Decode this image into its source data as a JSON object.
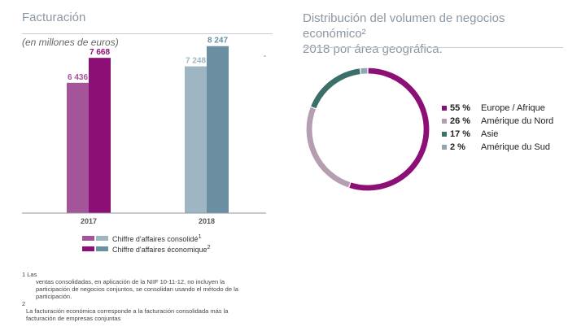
{
  "left_title": "Facturación",
  "left_subtitle": "(en millones de euros)",
  "right_title_line1": "Distribución del volumen de negocios económico²",
  "right_title_line2": "2018 por área geográfica.",
  "colors": {
    "consolidated_2017": "#a4559a",
    "economic_2017": "#8c0f76",
    "consolidated_2018": "#9eb6c1",
    "economic_2018": "#6b8fa1",
    "europe_africa": "#8c0f76",
    "north_america": "#b59db2",
    "asia": "#3d6f6a",
    "south_america": "#8ea7b5"
  },
  "chart_data": [
    {
      "type": "bar",
      "categories": [
        "2017",
        "2018"
      ],
      "series": [
        {
          "name": "Chiffre d'affaires consolidé",
          "values": [
            6436,
            7248
          ],
          "value_labels": [
            "6 436",
            "7 248"
          ]
        },
        {
          "name": "Chiffre d'affaires économique",
          "values": [
            7668,
            8247
          ],
          "value_labels": [
            "7 668",
            "8 247"
          ]
        }
      ],
      "ylim": [
        0,
        9000
      ],
      "grid": false,
      "legend_position": "bottom"
    },
    {
      "type": "pie",
      "donut": true,
      "title": "Distribución del volumen de negocios económico² 2018 por área geográfica.",
      "slices": [
        {
          "label": "Europe / Afrique",
          "value": 55,
          "value_label": "55 %"
        },
        {
          "label": "Amérique du Nord",
          "value": 26,
          "value_label": "26 %"
        },
        {
          "label": "Asie",
          "value": 17,
          "value_label": "17 %"
        },
        {
          "label": "Amérique du Sud",
          "value": 2,
          "value_label": "2 %"
        }
      ],
      "legend_position": "right"
    }
  ],
  "legend_bar": {
    "label_consolidated": "Chiffre d'affaires consolidé",
    "sup_consolidated": "1",
    "label_economic": "Chiffre d'affaires économique",
    "sup_economic": "2"
  },
  "footnotes": {
    "n1_marker": "1 Las",
    "n1_text": "ventas consolidadas, en aplicación de la NIIF 10-11-12, no incluyen la participación de negocios conjuntos, se consolidan usando el método de la participación.",
    "n2_marker": "2",
    "n2_text": "La facturación económica corresponde a la facturación consolidada más la facturación de empresas conjuntas"
  }
}
